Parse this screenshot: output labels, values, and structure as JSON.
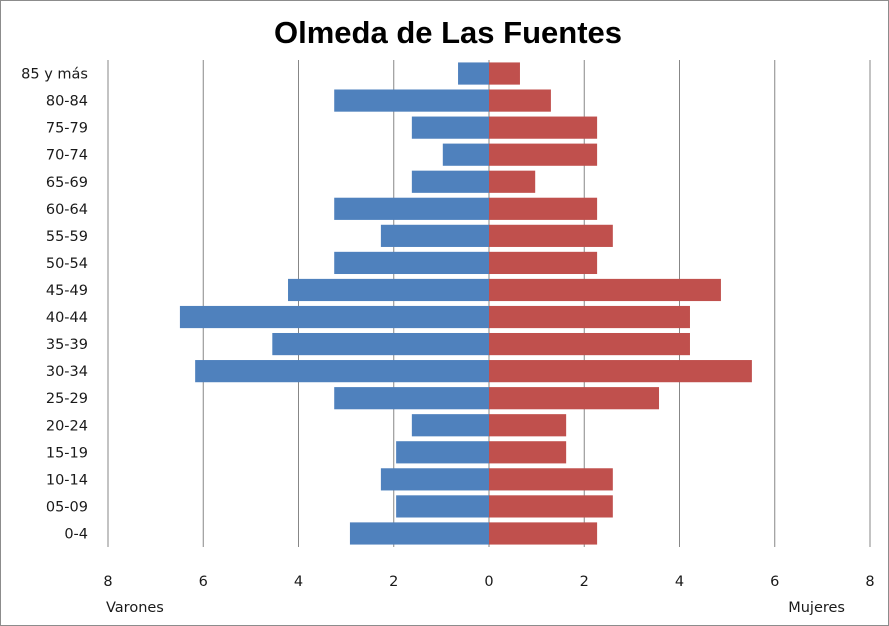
{
  "chart_data": {
    "type": "bar",
    "orientation": "horizontal",
    "title": "Olmeda de Las Fuentes",
    "categories": [
      "85 y más",
      "80-84",
      "75-79",
      "70-74",
      "65-69",
      "60-64",
      "55-59",
      "50-54",
      "45-49",
      "40-44",
      "35-39",
      "30-34",
      "25-29",
      "20-24",
      "15-19",
      "10-14",
      "05-09",
      "0-4"
    ],
    "series": [
      {
        "name": "Varones",
        "color": "#4f81bd",
        "values": [
          0.65,
          3.25,
          1.62,
          0.97,
          1.62,
          3.25,
          2.27,
          3.25,
          4.22,
          6.49,
          4.55,
          6.17,
          3.25,
          1.62,
          1.95,
          2.27,
          1.95,
          2.92
        ]
      },
      {
        "name": "Mujeres",
        "color": "#c0504d",
        "values": [
          0.65,
          1.3,
          2.27,
          2.27,
          0.97,
          2.27,
          2.6,
          2.27,
          4.87,
          4.22,
          4.22,
          5.52,
          3.57,
          1.62,
          1.62,
          2.6,
          2.6,
          2.27
        ]
      }
    ],
    "x_ticks": [
      "8",
      "6",
      "4",
      "2",
      "0",
      "2",
      "4",
      "6",
      "8"
    ],
    "xlim": [
      -8,
      8
    ],
    "xlabel_left": "Varones",
    "xlabel_right": "Mujeres",
    "grid": true,
    "gridline_color": "#878787"
  }
}
